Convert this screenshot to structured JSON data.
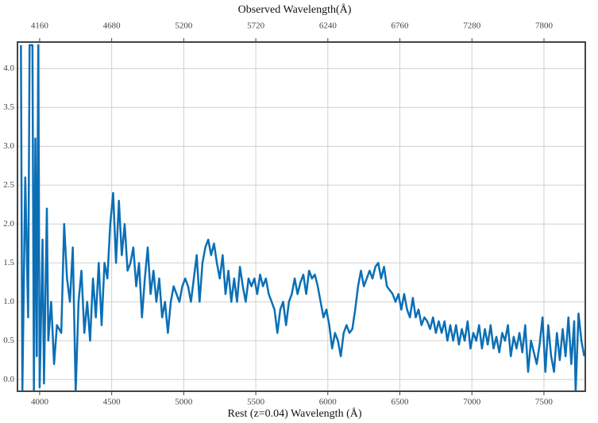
{
  "chart_data": {
    "type": "line",
    "title": "Observed Wavelength(Å)",
    "x_label": "Rest (z=0.04) Wavelength (Å)",
    "xlim": [
      3846,
      7787
    ],
    "xticks": [
      4000,
      4500,
      5000,
      5500,
      6000,
      6500,
      7000,
      7500
    ],
    "x2lim": [
      4000,
      8098
    ],
    "x2ticks": [
      4160,
      4680,
      5200,
      5720,
      6240,
      6760,
      7280,
      7800
    ],
    "ylim": [
      -0.15,
      4.34
    ],
    "yticks": [
      {
        "value": 0,
        "label": "0.0"
      },
      0.5,
      {
        "value": 1,
        "label": "1.0"
      },
      1.5,
      {
        "value": 2,
        "label": "2.0"
      },
      2.5,
      {
        "value": 3,
        "label": "3.0"
      },
      3.5,
      {
        "value": 4,
        "label": "4.0"
      }
    ],
    "grid": true,
    "color": "#0b6fb6",
    "x": [
      3870,
      3880,
      3900,
      3920,
      3930,
      3950,
      3960,
      3970,
      3980,
      3990,
      4000,
      4020,
      4030,
      4050,
      4060,
      4080,
      4100,
      4120,
      4150,
      4170,
      4190,
      4210,
      4230,
      4250,
      4270,
      4290,
      4310,
      4330,
      4350,
      4370,
      4390,
      4410,
      4430,
      4450,
      4470,
      4490,
      4510,
      4530,
      4550,
      4570,
      4590,
      4610,
      4630,
      4650,
      4670,
      4690,
      4710,
      4730,
      4750,
      4770,
      4790,
      4810,
      4830,
      4850,
      4870,
      4890,
      4910,
      4930,
      4950,
      4970,
      4990,
      5010,
      5030,
      5050,
      5070,
      5090,
      5110,
      5130,
      5150,
      5170,
      5190,
      5210,
      5230,
      5250,
      5270,
      5290,
      5310,
      5330,
      5350,
      5370,
      5390,
      5410,
      5430,
      5450,
      5470,
      5490,
      5510,
      5530,
      5550,
      5570,
      5590,
      5610,
      5630,
      5650,
      5670,
      5690,
      5710,
      5730,
      5750,
      5770,
      5790,
      5810,
      5830,
      5850,
      5870,
      5890,
      5910,
      5930,
      5950,
      5970,
      5990,
      6010,
      6030,
      6050,
      6070,
      6090,
      6110,
      6130,
      6150,
      6170,
      6190,
      6210,
      6230,
      6250,
      6270,
      6290,
      6310,
      6330,
      6350,
      6370,
      6390,
      6410,
      6430,
      6450,
      6470,
      6490,
      6510,
      6530,
      6550,
      6570,
      6590,
      6610,
      6630,
      6650,
      6670,
      6690,
      6710,
      6730,
      6750,
      6770,
      6790,
      6810,
      6830,
      6850,
      6870,
      6890,
      6910,
      6930,
      6950,
      6970,
      6990,
      7010,
      7030,
      7050,
      7070,
      7090,
      7110,
      7130,
      7150,
      7170,
      7190,
      7210,
      7230,
      7250,
      7270,
      7290,
      7310,
      7330,
      7350,
      7370,
      7390,
      7410,
      7430,
      7450,
      7470,
      7490,
      7510,
      7530,
      7550,
      7570,
      7590,
      7610,
      7630,
      7650,
      7670,
      7690,
      7710,
      7720,
      7740,
      7760,
      7780
    ],
    "values": [
      4.3,
      -0.15,
      2.6,
      0.8,
      4.3,
      4.3,
      -0.15,
      3.1,
      0.3,
      4.3,
      -0.1,
      1.8,
      -0.05,
      2.2,
      0.5,
      1.0,
      0.2,
      0.7,
      0.6,
      2.0,
      1.3,
      1.0,
      1.7,
      -0.15,
      1.0,
      1.4,
      0.6,
      1.0,
      0.5,
      1.3,
      0.8,
      1.5,
      0.7,
      1.5,
      1.3,
      2.0,
      2.4,
      1.5,
      2.3,
      1.6,
      2.0,
      1.4,
      1.5,
      1.7,
      1.2,
      1.5,
      0.8,
      1.3,
      1.7,
      1.1,
      1.4,
      1.0,
      1.3,
      0.8,
      1.0,
      0.6,
      1.0,
      1.2,
      1.1,
      1.0,
      1.2,
      1.3,
      1.2,
      1.0,
      1.3,
      1.6,
      1.0,
      1.5,
      1.7,
      1.8,
      1.6,
      1.75,
      1.5,
      1.3,
      1.6,
      1.1,
      1.4,
      1.0,
      1.3,
      1.0,
      1.45,
      1.2,
      1.0,
      1.3,
      1.2,
      1.3,
      1.1,
      1.35,
      1.2,
      1.3,
      1.1,
      1.0,
      0.9,
      0.6,
      0.9,
      1.0,
      0.7,
      1.0,
      1.1,
      1.3,
      1.1,
      1.25,
      1.35,
      1.1,
      1.4,
      1.3,
      1.35,
      1.2,
      1.0,
      0.8,
      0.9,
      0.7,
      0.4,
      0.6,
      0.5,
      0.3,
      0.6,
      0.7,
      0.6,
      0.65,
      0.9,
      1.2,
      1.4,
      1.2,
      1.3,
      1.4,
      1.3,
      1.45,
      1.5,
      1.3,
      1.45,
      1.2,
      1.15,
      1.1,
      1.0,
      1.1,
      0.9,
      1.1,
      0.9,
      0.8,
      1.05,
      0.8,
      0.9,
      0.7,
      0.8,
      0.75,
      0.65,
      0.8,
      0.6,
      0.75,
      0.6,
      0.75,
      0.5,
      0.7,
      0.5,
      0.7,
      0.45,
      0.65,
      0.5,
      0.75,
      0.4,
      0.6,
      0.5,
      0.7,
      0.4,
      0.65,
      0.45,
      0.7,
      0.4,
      0.55,
      0.35,
      0.6,
      0.5,
      0.7,
      0.3,
      0.55,
      0.4,
      0.6,
      0.35,
      0.7,
      0.1,
      0.5,
      0.35,
      0.2,
      0.45,
      0.8,
      0.1,
      0.7,
      0.3,
      0.1,
      0.6,
      0.25,
      0.65,
      0.3,
      0.8,
      0.2,
      0.75,
      -0.15,
      0.85,
      0.5,
      0.3
    ]
  }
}
